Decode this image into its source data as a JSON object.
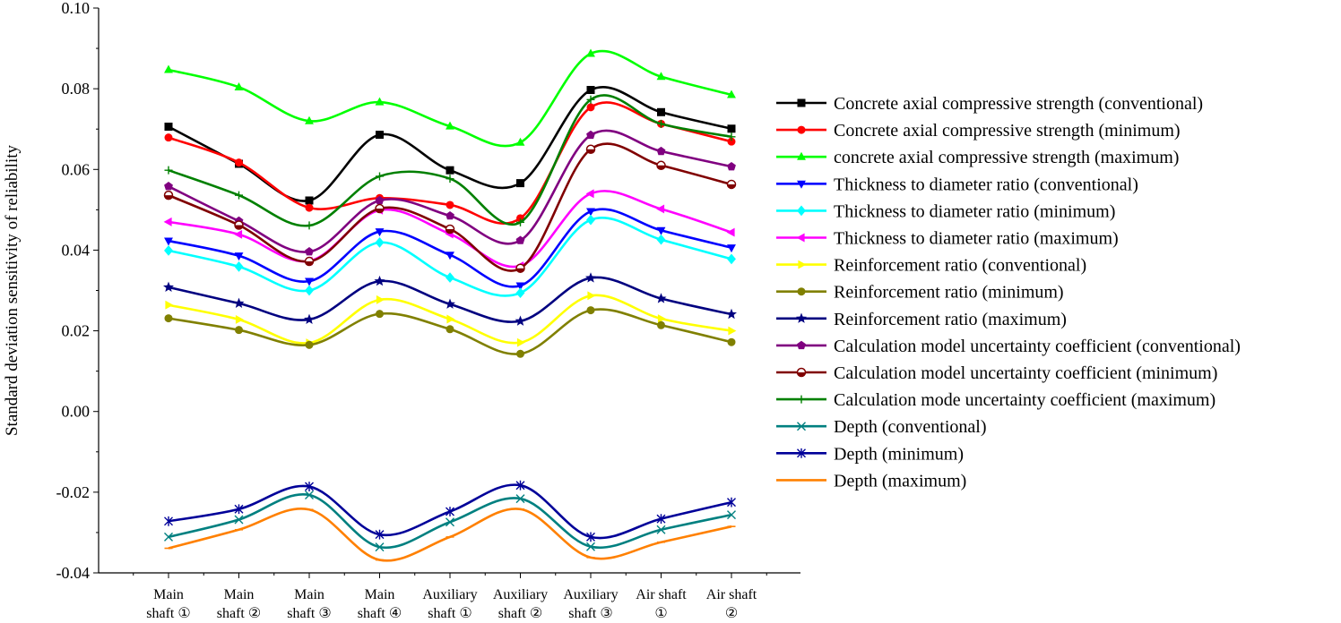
{
  "chart_data": {
    "type": "line",
    "title": "",
    "xlabel": "",
    "ylabel": "Standard deviation sensitivity of reliability",
    "ylim": [
      -0.04,
      0.1
    ],
    "yticks": [
      "-0.04",
      "-0.02",
      "0.00",
      "0.02",
      "0.04",
      "0.06",
      "0.08",
      "0.10"
    ],
    "ytick_values": [
      -0.04,
      -0.02,
      0.0,
      0.02,
      0.04,
      0.06,
      0.08,
      0.1
    ],
    "categories": [
      [
        "Main",
        "shaft ①"
      ],
      [
        "Main",
        "shaft ②"
      ],
      [
        "Main",
        "shaft ③"
      ],
      [
        "Main",
        "shaft ④"
      ],
      [
        "Auxiliary",
        "shaft ①"
      ],
      [
        "Auxiliary",
        "shaft ②"
      ],
      [
        "Auxiliary",
        "shaft ③"
      ],
      [
        "Air shaft",
        "①"
      ],
      [
        "Air shaft",
        "②"
      ]
    ],
    "legend_position": "right",
    "grid": false,
    "series": [
      {
        "name": "Concrete axial compressive strength (conventional)",
        "color": "#000000",
        "marker": "square",
        "values": [
          0.0706,
          0.0614,
          0.0523,
          0.0686,
          0.0598,
          0.0566,
          0.0797,
          0.0742,
          0.0701
        ]
      },
      {
        "name": "Concrete axial compressive strength (minimum)",
        "color": "#ff0000",
        "marker": "circle",
        "values": [
          0.0679,
          0.0617,
          0.0505,
          0.0529,
          0.0512,
          0.0479,
          0.0754,
          0.0713,
          0.0669
        ]
      },
      {
        "name": "concrete axial compressive strength (maximum)",
        "color": "#00ff00",
        "marker": "triangle-up",
        "values": [
          0.0847,
          0.0804,
          0.072,
          0.0767,
          0.0707,
          0.0667,
          0.0887,
          0.083,
          0.0785
        ]
      },
      {
        "name": "Thickness to diameter ratio (conventional)",
        "color": "#0000ff",
        "marker": "triangle-down",
        "values": [
          0.0423,
          0.0386,
          0.0323,
          0.0446,
          0.0388,
          0.0312,
          0.0496,
          0.0449,
          0.0406
        ]
      },
      {
        "name": "Thickness to diameter ratio (minimum)",
        "color": "#00ffff",
        "marker": "diamond",
        "values": [
          0.0399,
          0.0359,
          0.03,
          0.0419,
          0.0332,
          0.0294,
          0.0475,
          0.0426,
          0.0378
        ]
      },
      {
        "name": "Thickness to diameter ratio (maximum)",
        "color": "#ff00ff",
        "marker": "triangle-left",
        "values": [
          0.047,
          0.0439,
          0.0373,
          0.0499,
          0.044,
          0.0361,
          0.054,
          0.0502,
          0.0444
        ]
      },
      {
        "name": "Reinforcement ratio (conventional)",
        "color": "#ffff00",
        "marker": "triangle-right",
        "values": [
          0.0264,
          0.0228,
          0.017,
          0.0277,
          0.0229,
          0.0171,
          0.0287,
          0.023,
          0.02
        ]
      },
      {
        "name": "Reinforcement ratio (minimum)",
        "color": "#808000",
        "marker": "circle",
        "values": [
          0.0231,
          0.0202,
          0.0165,
          0.0242,
          0.0204,
          0.0143,
          0.0251,
          0.0214,
          0.0172
        ]
      },
      {
        "name": "Reinforcement ratio (maximum)",
        "color": "#000080",
        "marker": "star",
        "values": [
          0.0308,
          0.0268,
          0.0228,
          0.0323,
          0.0266,
          0.0224,
          0.0331,
          0.028,
          0.0241
        ]
      },
      {
        "name": "Calculation model uncertainty coefficient (conventional)",
        "color": "#800080",
        "marker": "pentagon",
        "values": [
          0.0558,
          0.0472,
          0.0396,
          0.0523,
          0.0485,
          0.0424,
          0.0685,
          0.0645,
          0.0607
        ]
      },
      {
        "name": "Calculation model uncertainty coefficient (minimum)",
        "color": "#800000",
        "marker": "half-circle",
        "values": [
          0.0536,
          0.0462,
          0.0372,
          0.0503,
          0.0452,
          0.0355,
          0.065,
          0.061,
          0.0563
        ]
      },
      {
        "name": "Calculation mode uncertainty coefficient (maximum)",
        "color": "#008000",
        "marker": "plus",
        "values": [
          0.0598,
          0.0536,
          0.0461,
          0.0583,
          0.0577,
          0.0469,
          0.0773,
          0.0713,
          0.0681
        ]
      },
      {
        "name": "Depth (conventional)",
        "color": "#008080",
        "marker": "x",
        "values": [
          -0.0311,
          -0.0268,
          -0.0207,
          -0.0336,
          -0.0274,
          -0.0216,
          -0.0335,
          -0.0293,
          -0.0256
        ]
      },
      {
        "name": "Depth (minimum)",
        "color": "#000099",
        "marker": "asterisk",
        "values": [
          -0.0272,
          -0.0242,
          -0.0186,
          -0.0305,
          -0.0248,
          -0.0183,
          -0.0311,
          -0.0266,
          -0.0225
        ]
      },
      {
        "name": "Depth (maximum)",
        "color": "#ff8000",
        "marker": "dash",
        "values": [
          -0.0339,
          -0.0293,
          -0.0243,
          -0.0368,
          -0.0311,
          -0.0242,
          -0.0362,
          -0.0324,
          -0.0285
        ]
      }
    ]
  }
}
